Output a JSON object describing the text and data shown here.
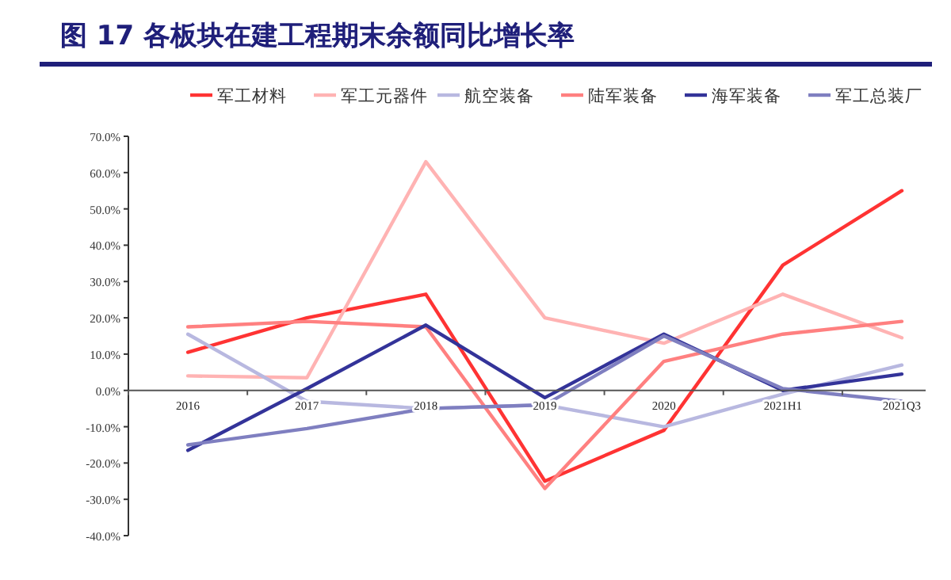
{
  "chart_data": {
    "type": "line",
    "title": "图 17 各板块在建工程期末余额同比增长率",
    "categories": [
      "2016",
      "2017",
      "2018",
      "2019",
      "2020",
      "2021H1",
      "2021Q3"
    ],
    "series": [
      {
        "name": "军工材料",
        "color": "#ff3333",
        "values": [
          10.5,
          20,
          26.5,
          -25,
          -11,
          34.5,
          55
        ]
      },
      {
        "name": "军工元器件",
        "color": "#ffb3b3",
        "values": [
          4,
          3.5,
          63,
          20,
          13,
          26.5,
          14.5
        ]
      },
      {
        "name": "航空装备",
        "color": "#b8b8e0",
        "values": [
          15.5,
          -3,
          -5,
          -4,
          -10,
          -1,
          7
        ]
      },
      {
        "name": "陆军装备",
        "color": "#ff8080",
        "values": [
          17.5,
          19,
          17.5,
          -27,
          8,
          15.5,
          19
        ]
      },
      {
        "name": "海军装备",
        "color": "#333399",
        "values": [
          -16.5,
          0.5,
          18,
          -2,
          15.5,
          0,
          4.5
        ]
      },
      {
        "name": "军工总装厂",
        "color": "#7f7fc0",
        "values": [
          -15,
          -10.5,
          -5,
          -4,
          15,
          0.5,
          -3
        ]
      }
    ],
    "ylim": [
      -40,
      70
    ],
    "yticks": [
      {
        "value": -40,
        "label": "-40.0%"
      },
      {
        "value": -30,
        "label": "-30.0%"
      },
      {
        "value": -20,
        "label": "-20.0%"
      },
      {
        "value": -10,
        "label": "-10.0%"
      },
      {
        "value": 0,
        "label": "0.0%"
      },
      {
        "value": 10,
        "label": "10.0%"
      },
      {
        "value": 20,
        "label": "20.0%"
      },
      {
        "value": 30,
        "label": "30.0%"
      },
      {
        "value": 40,
        "label": "40.0%"
      },
      {
        "value": 50,
        "label": "50.0%"
      },
      {
        "value": 60,
        "label": "60.0%"
      },
      {
        "value": 70,
        "label": "70.0%"
      }
    ],
    "legend": "top",
    "grid": false,
    "marker": "none",
    "line_style": "solid"
  }
}
